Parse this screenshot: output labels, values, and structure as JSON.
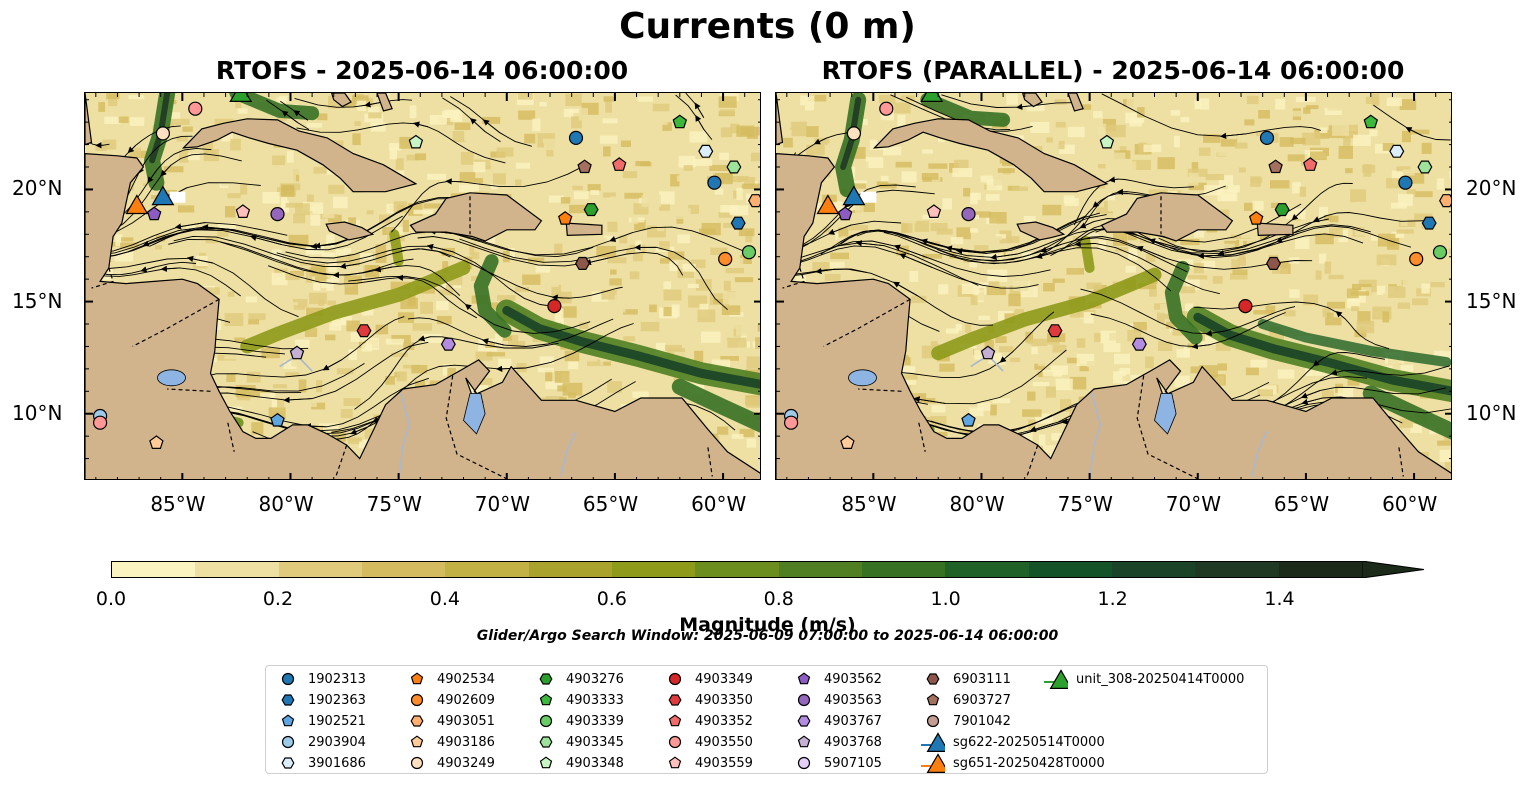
{
  "title": "Currents (0 m)",
  "panels": [
    {
      "title": "RTOFS - 2025-06-14 06:00:00"
    },
    {
      "title": "RTOFS (PARALLEL) - 2025-06-14 06:00:00"
    }
  ],
  "map": {
    "lon_range": [
      -89.5,
      -58.2
    ],
    "lat_range": [
      7,
      24.3
    ],
    "lon_ticks": [
      "85°W",
      "80°W",
      "75°W",
      "70°W",
      "65°W",
      "60°W"
    ],
    "lat_ticks": [
      "20°N",
      "15°N",
      "10°N"
    ],
    "colors": {
      "land": "#d2b48c",
      "lake": "#8eb4e3",
      "river": "#a8b8d0"
    }
  },
  "colorbar": {
    "label": "Magnitude (m/s)",
    "ticks": [
      "0.0",
      "0.2",
      "0.4",
      "0.6",
      "0.8",
      "1.0",
      "1.2",
      "1.4"
    ],
    "range": [
      0,
      1.5
    ],
    "colors": [
      "#fbf3c0",
      "#ede0a2",
      "#e0cb7d",
      "#d4bb5f",
      "#c2b144",
      "#a9a22c",
      "#8d9a1a",
      "#6b8e1e",
      "#4f7f22",
      "#367124",
      "#1f6126",
      "#135327",
      "#1a4328",
      "#1f3924",
      "#1c2a1a"
    ]
  },
  "search_window": "Glider/Argo Search Window: 2025-06-09 07:00:00 to 2025-06-14 06:00:00",
  "legend": [
    {
      "label": "1902313",
      "marker": "circle",
      "color": "#1f77b4"
    },
    {
      "label": "1902363",
      "marker": "hexagon",
      "color": "#1f77b4"
    },
    {
      "label": "1902521",
      "marker": "pentagon",
      "color": "#5ea6e2"
    },
    {
      "label": "2903904",
      "marker": "circle",
      "color": "#9ecae9"
    },
    {
      "label": "3901686",
      "marker": "hexagon",
      "color": "#dceefb"
    },
    {
      "label": "4902534",
      "marker": "pentagon",
      "color": "#ff7f0e"
    },
    {
      "label": "4902609",
      "marker": "circle",
      "color": "#ff8c2a"
    },
    {
      "label": "4903051",
      "marker": "hexagon",
      "color": "#ffb070"
    },
    {
      "label": "4903186",
      "marker": "pentagon",
      "color": "#ffcc99"
    },
    {
      "label": "4903249",
      "marker": "circle",
      "color": "#ffe0c0"
    },
    {
      "label": "4903276",
      "marker": "hexagon",
      "color": "#2ca02c"
    },
    {
      "label": "4903333",
      "marker": "pentagon",
      "color": "#3cb83c"
    },
    {
      "label": "4903339",
      "marker": "circle",
      "color": "#6acc64"
    },
    {
      "label": "4903345",
      "marker": "hexagon",
      "color": "#9ee39a"
    },
    {
      "label": "4903348",
      "marker": "pentagon",
      "color": "#c7f5c3"
    },
    {
      "label": "4903349",
      "marker": "circle",
      "color": "#d62728"
    },
    {
      "label": "4903350",
      "marker": "hexagon",
      "color": "#e03a3c"
    },
    {
      "label": "4903352",
      "marker": "pentagon",
      "color": "#f26b6b"
    },
    {
      "label": "4903550",
      "marker": "circle",
      "color": "#ff9896"
    },
    {
      "label": "4903559",
      "marker": "pentagon",
      "color": "#ffc0bd"
    },
    {
      "label": "4903562",
      "marker": "pentagon",
      "color": "#8c5bc4"
    },
    {
      "label": "4903563",
      "marker": "circle",
      "color": "#9467bd"
    },
    {
      "label": "4903767",
      "marker": "hexagon",
      "color": "#b38be0"
    },
    {
      "label": "4903768",
      "marker": "pentagon",
      "color": "#c5b0d5"
    },
    {
      "label": "5907105",
      "marker": "circle",
      "color": "#e3d0f7"
    },
    {
      "label": "6903111",
      "marker": "hexagon",
      "color": "#8c564b"
    },
    {
      "label": "6903727",
      "marker": "pentagon",
      "color": "#a4705f"
    },
    {
      "label": "7901042",
      "marker": "circle",
      "color": "#c49c94"
    },
    {
      "label": "sg622-20250514T0000",
      "marker": "triangle",
      "color": "#1f77b4"
    },
    {
      "label": "sg651-20250428T0000",
      "marker": "triangle",
      "color": "#ff7f0e"
    },
    {
      "label": "unit_308-20250414T0000",
      "marker": "triangle",
      "color": "#2ca02c"
    }
  ],
  "floats": [
    {
      "id": "1902313",
      "lon": -66.8,
      "lat": 22.3
    },
    {
      "id": "1902313",
      "lon": -60.4,
      "lat": 20.3
    },
    {
      "id": "1902363",
      "lon": -59.3,
      "lat": 18.5
    },
    {
      "id": "1902521",
      "lon": -80.6,
      "lat": 9.7
    },
    {
      "id": "2903904",
      "lon": -88.8,
      "lat": 9.9
    },
    {
      "id": "3901686",
      "lon": -60.8,
      "lat": 21.7
    },
    {
      "id": "4902534",
      "lon": -67.3,
      "lat": 18.7
    },
    {
      "id": "4902609",
      "lon": -59.9,
      "lat": 16.9
    },
    {
      "id": "4903051",
      "lon": -58.5,
      "lat": 19.5
    },
    {
      "id": "4903186",
      "lon": -86.2,
      "lat": 8.7
    },
    {
      "id": "4903249",
      "lon": -85.9,
      "lat": 22.5
    },
    {
      "id": "4903276",
      "lon": -66.1,
      "lat": 19.1
    },
    {
      "id": "4903333",
      "lon": -62.0,
      "lat": 23.0
    },
    {
      "id": "4903339",
      "lon": -58.8,
      "lat": 17.2
    },
    {
      "id": "4903345",
      "lon": -59.5,
      "lat": 21.0
    },
    {
      "id": "4903348",
      "lon": -74.2,
      "lat": 22.1
    },
    {
      "id": "4903349",
      "lon": -67.8,
      "lat": 14.8
    },
    {
      "id": "4903350",
      "lon": -76.6,
      "lat": 13.7
    },
    {
      "id": "4903352",
      "lon": -64.8,
      "lat": 21.1
    },
    {
      "id": "4903550",
      "lon": -84.4,
      "lat": 23.6
    },
    {
      "id": "4903550",
      "lon": -88.8,
      "lat": 9.6
    },
    {
      "id": "4903559",
      "lon": -82.2,
      "lat": 19.0
    },
    {
      "id": "4903562",
      "lon": -86.3,
      "lat": 18.9
    },
    {
      "id": "4903563",
      "lon": -80.6,
      "lat": 18.9
    },
    {
      "id": "4903767",
      "lon": -72.7,
      "lat": 13.1
    },
    {
      "id": "4903768",
      "lon": -79.7,
      "lat": 12.7
    },
    {
      "id": "6903111",
      "lon": -66.5,
      "lat": 16.7
    },
    {
      "id": "6903727",
      "lon": -66.4,
      "lat": 21.0
    }
  ],
  "gliders": [
    {
      "id": "sg622-20250514T0000",
      "lon": -85.9,
      "lat": 19.7
    },
    {
      "id": "sg651-20250428T0000",
      "lon": -87.1,
      "lat": 19.3
    },
    {
      "id": "unit_308-20250414T0000",
      "lon": -82.3,
      "lat": 24.3
    }
  ]
}
